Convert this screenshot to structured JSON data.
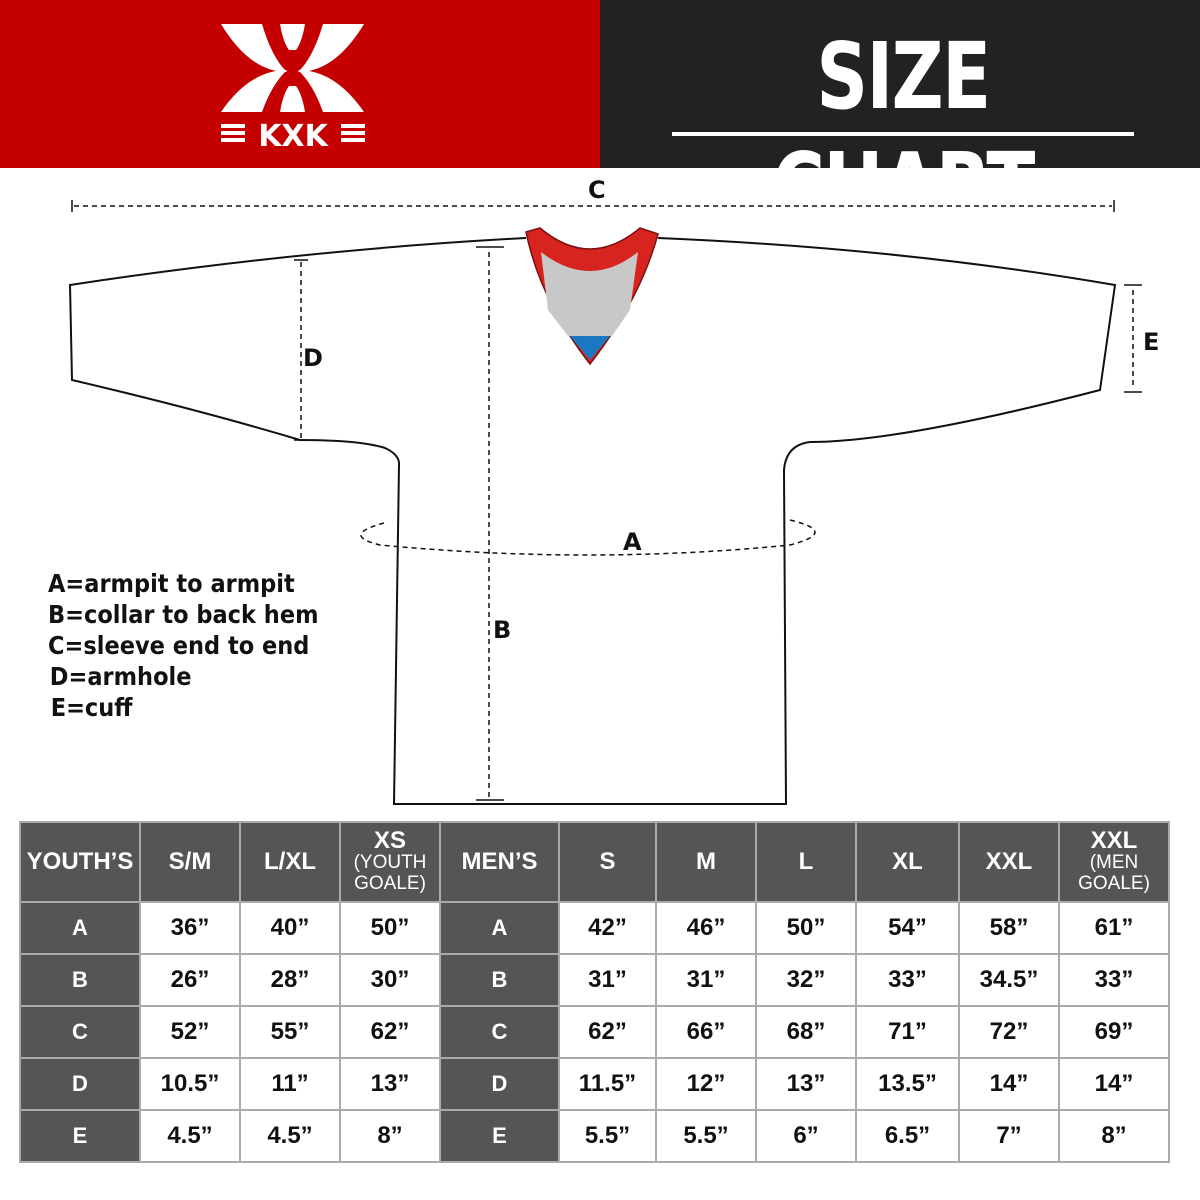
{
  "header": {
    "brand": "KXK",
    "title": "SIZE CHART",
    "colors": {
      "brand_red": "#c40000",
      "dark": "#222222"
    }
  },
  "diagram": {
    "labels": {
      "a": "A",
      "b": "B",
      "c": "C",
      "d": "D",
      "e": "E"
    }
  },
  "legend": [
    "A=armpit to armpit",
    "B=collar to back hem",
    "C=sleeve end to end",
    "D=armhole",
    "E=cuff"
  ],
  "table": {
    "youth_header": "YOUTH’S",
    "youth_sizes": [
      {
        "main": "S/M"
      },
      {
        "main": "L/XL"
      },
      {
        "main": "XS",
        "sub1": "(YOUTH",
        "sub2": "GOALE)"
      }
    ],
    "men_header": "MEN’S",
    "men_sizes": [
      {
        "main": "S"
      },
      {
        "main": "M"
      },
      {
        "main": "L"
      },
      {
        "main": "XL"
      },
      {
        "main": "XXL"
      },
      {
        "main": "XXL",
        "sub1": "(MEN",
        "sub2": "GOALE)"
      }
    ],
    "rows": [
      {
        "label": "A",
        "youth": [
          "36”",
          "40”",
          "50”"
        ],
        "men": [
          "42”",
          "46”",
          "50”",
          "54”",
          "58”",
          "61”"
        ]
      },
      {
        "label": "B",
        "youth": [
          "26”",
          "28”",
          "30”"
        ],
        "men": [
          "31”",
          "31”",
          "32”",
          "33”",
          "34.5”",
          "33”"
        ]
      },
      {
        "label": "C",
        "youth": [
          "52”",
          "55”",
          "62”"
        ],
        "men": [
          "62”",
          "66”",
          "68”",
          "71”",
          "72”",
          "69”"
        ]
      },
      {
        "label": "D",
        "youth": [
          "10.5”",
          "11”",
          "13”"
        ],
        "men": [
          "11.5”",
          "12”",
          "13”",
          "13.5”",
          "14”",
          "14”"
        ]
      },
      {
        "label": "E",
        "youth": [
          "4.5”",
          "4.5”",
          "8”"
        ],
        "men": [
          "5.5”",
          "5.5”",
          "6”",
          "6.5”",
          "7”",
          "8”"
        ]
      }
    ]
  }
}
